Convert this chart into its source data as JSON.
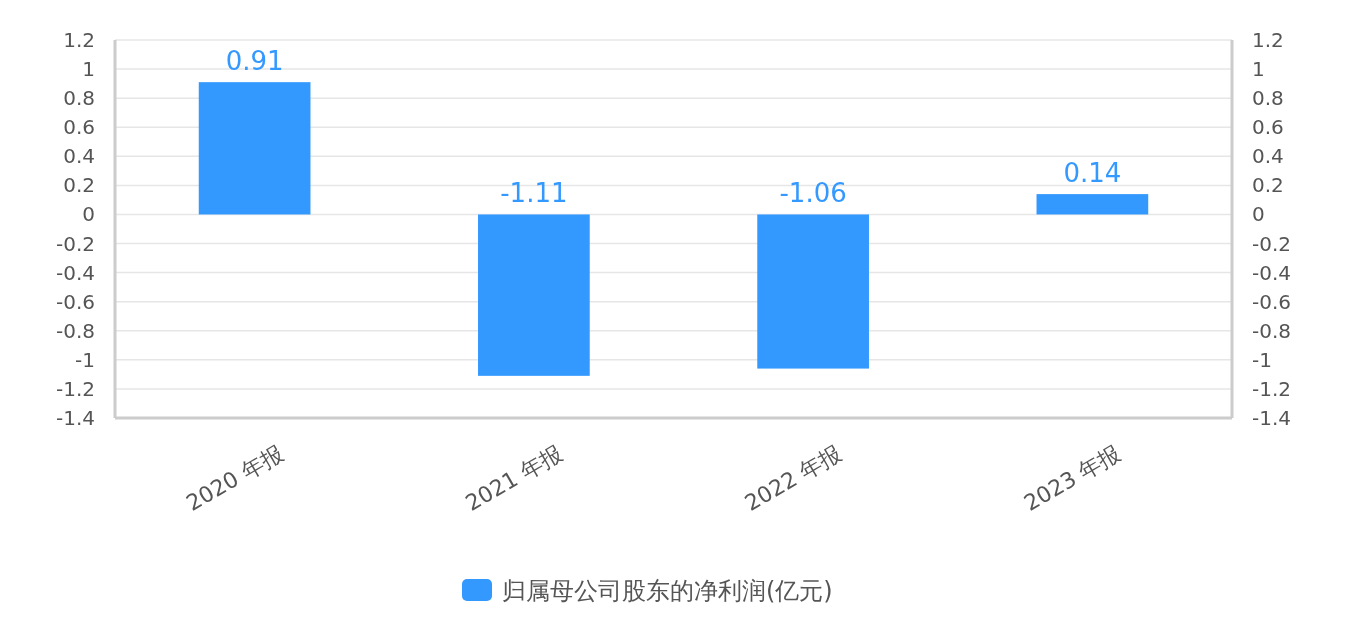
{
  "chart_data": {
    "type": "bar",
    "categories": [
      "2020 年报",
      "2021 年报",
      "2022 年报",
      "2023 年报"
    ],
    "series": [
      {
        "name": "归属母公司股东的净利润(亿元)",
        "color": "#3399ff",
        "values": [
          0.91,
          -1.11,
          -1.06,
          0.14
        ]
      }
    ],
    "ylim": [
      -1.4,
      1.2
    ],
    "yticks": [
      -1.4,
      -1.2,
      -1,
      -0.8,
      -0.6,
      -0.4,
      -0.2,
      0,
      0.2,
      0.4,
      0.6,
      0.8,
      1,
      1.2
    ],
    "y2lim": [
      -1.4,
      1.2
    ],
    "y2ticks": [
      -1.4,
      -1.2,
      -1,
      -0.8,
      -0.6,
      -0.4,
      -0.2,
      0,
      0.2,
      0.4,
      0.6,
      0.8,
      1,
      1.2
    ],
    "grid": "y",
    "legend": "bottom",
    "data_labels": true
  }
}
